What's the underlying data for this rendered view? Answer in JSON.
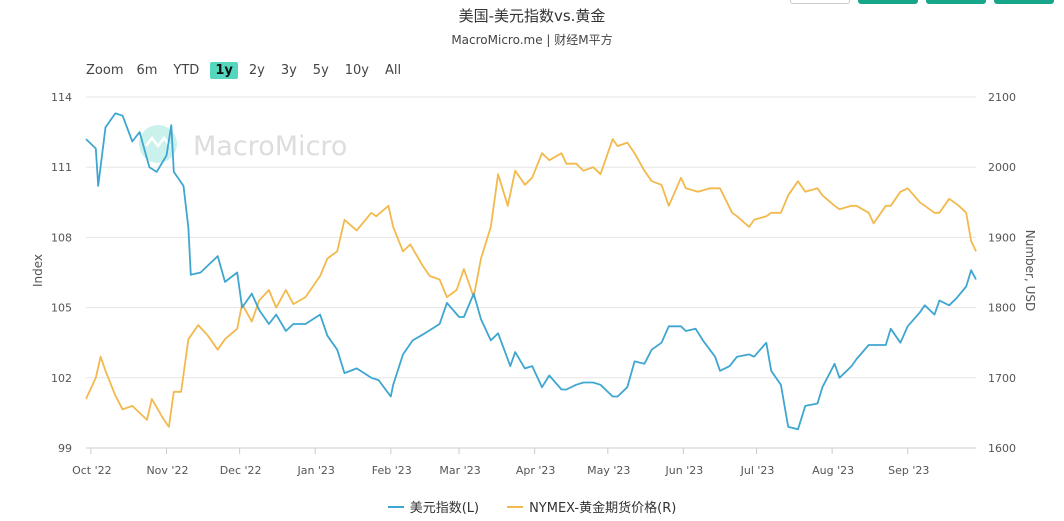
{
  "header": {
    "title": "美国-美元指数vs.黄金",
    "subtitle": "MacroMicro.me | 财经M平方"
  },
  "range_selector": {
    "label": "Zoom",
    "options": [
      "6m",
      "YTD",
      "1y",
      "2y",
      "3y",
      "5y",
      "10y",
      "All"
    ],
    "selected": "1y"
  },
  "watermark": {
    "text": "MacroMicro",
    "icon": "macromicro-logo-icon"
  },
  "colors": {
    "dxy": "#3ea6d0",
    "gold": "#f2b94d",
    "grid": "#e6e6e6",
    "axis_text": "#555555",
    "active_range": "#55d7bf"
  },
  "chart_data": {
    "type": "line",
    "title": "美国-美元指数vs.黄金",
    "subtitle": "MacroMicro.me | 财经M平方",
    "x_ticks": [
      "Oct '22",
      "Nov '22",
      "Dec '22",
      "Jan '23",
      "Feb '23",
      "Mar '23",
      "Apr '23",
      "May '23",
      "Jun '23",
      "Jul '23",
      "Aug '23",
      "Sep '23"
    ],
    "x_range": [
      "2022-09-29",
      "2023-09-29"
    ],
    "left_axis": {
      "label": "Index",
      "range": [
        99,
        114
      ],
      "ticks": [
        99,
        102,
        105,
        108,
        111,
        114
      ]
    },
    "right_axis": {
      "label": "Number, USD",
      "range": [
        1600,
        2100
      ],
      "ticks": [
        1600,
        1700,
        1800,
        1900,
        2000,
        2100
      ]
    },
    "grid": true,
    "legend_position": "bottom-center",
    "series": [
      {
        "name": "美元指数(L)",
        "axis": "left",
        "color": "#3ea6d0",
        "points": [
          [
            "2022-09-29",
            112.2
          ],
          [
            "2022-10-03",
            111.8
          ],
          [
            "2022-10-04",
            110.2
          ],
          [
            "2022-10-07",
            112.7
          ],
          [
            "2022-10-11",
            113.3
          ],
          [
            "2022-10-14",
            113.2
          ],
          [
            "2022-10-18",
            112.1
          ],
          [
            "2022-10-21",
            112.5
          ],
          [
            "2022-10-25",
            111.0
          ],
          [
            "2022-10-28",
            110.8
          ],
          [
            "2022-11-01",
            111.5
          ],
          [
            "2022-11-03",
            112.8
          ],
          [
            "2022-11-04",
            110.8
          ],
          [
            "2022-11-08",
            110.2
          ],
          [
            "2022-11-10",
            108.4
          ],
          [
            "2022-11-11",
            106.4
          ],
          [
            "2022-11-15",
            106.5
          ],
          [
            "2022-11-18",
            106.8
          ],
          [
            "2022-11-22",
            107.2
          ],
          [
            "2022-11-25",
            106.1
          ],
          [
            "2022-11-30",
            106.5
          ],
          [
            "2022-12-02",
            105.0
          ],
          [
            "2022-12-06",
            105.6
          ],
          [
            "2022-12-09",
            104.9
          ],
          [
            "2022-12-13",
            104.3
          ],
          [
            "2022-12-16",
            104.7
          ],
          [
            "2022-12-20",
            104.0
          ],
          [
            "2022-12-23",
            104.3
          ],
          [
            "2022-12-28",
            104.3
          ],
          [
            "2023-01-03",
            104.7
          ],
          [
            "2023-01-06",
            103.8
          ],
          [
            "2023-01-10",
            103.2
          ],
          [
            "2023-01-13",
            102.2
          ],
          [
            "2023-01-18",
            102.4
          ],
          [
            "2023-01-24",
            102.0
          ],
          [
            "2023-01-27",
            101.9
          ],
          [
            "2023-02-01",
            101.2
          ],
          [
            "2023-02-02",
            101.7
          ],
          [
            "2023-02-06",
            103.0
          ],
          [
            "2023-02-10",
            103.6
          ],
          [
            "2023-02-15",
            103.9
          ],
          [
            "2023-02-21",
            104.3
          ],
          [
            "2023-02-24",
            105.2
          ],
          [
            "2023-03-01",
            104.6
          ],
          [
            "2023-03-03",
            104.6
          ],
          [
            "2023-03-07",
            105.6
          ],
          [
            "2023-03-10",
            104.5
          ],
          [
            "2023-03-14",
            103.6
          ],
          [
            "2023-03-17",
            103.9
          ],
          [
            "2023-03-22",
            102.5
          ],
          [
            "2023-03-24",
            103.1
          ],
          [
            "2023-03-28",
            102.4
          ],
          [
            "2023-03-31",
            102.5
          ],
          [
            "2023-04-04",
            101.6
          ],
          [
            "2023-04-07",
            102.1
          ],
          [
            "2023-04-12",
            101.5
          ],
          [
            "2023-04-14",
            101.5
          ],
          [
            "2023-04-18",
            101.7
          ],
          [
            "2023-04-21",
            101.8
          ],
          [
            "2023-04-25",
            101.8
          ],
          [
            "2023-04-28",
            101.7
          ],
          [
            "2023-05-03",
            101.2
          ],
          [
            "2023-05-05",
            101.2
          ],
          [
            "2023-05-09",
            101.6
          ],
          [
            "2023-05-12",
            102.7
          ],
          [
            "2023-05-16",
            102.6
          ],
          [
            "2023-05-19",
            103.2
          ],
          [
            "2023-05-23",
            103.5
          ],
          [
            "2023-05-26",
            104.2
          ],
          [
            "2023-05-31",
            104.2
          ],
          [
            "2023-06-02",
            104.0
          ],
          [
            "2023-06-06",
            104.1
          ],
          [
            "2023-06-09",
            103.6
          ],
          [
            "2023-06-14",
            102.9
          ],
          [
            "2023-06-16",
            102.3
          ],
          [
            "2023-06-20",
            102.5
          ],
          [
            "2023-06-23",
            102.9
          ],
          [
            "2023-06-28",
            103.0
          ],
          [
            "2023-06-30",
            102.9
          ],
          [
            "2023-07-05",
            103.5
          ],
          [
            "2023-07-07",
            102.3
          ],
          [
            "2023-07-11",
            101.7
          ],
          [
            "2023-07-14",
            99.9
          ],
          [
            "2023-07-18",
            99.8
          ],
          [
            "2023-07-21",
            100.8
          ],
          [
            "2023-07-26",
            100.9
          ],
          [
            "2023-07-28",
            101.6
          ],
          [
            "2023-08-02",
            102.6
          ],
          [
            "2023-08-04",
            102.0
          ],
          [
            "2023-08-09",
            102.5
          ],
          [
            "2023-08-11",
            102.8
          ],
          [
            "2023-08-16",
            103.4
          ],
          [
            "2023-08-18",
            103.4
          ],
          [
            "2023-08-23",
            103.4
          ],
          [
            "2023-08-25",
            104.1
          ],
          [
            "2023-08-29",
            103.5
          ],
          [
            "2023-09-01",
            104.2
          ],
          [
            "2023-09-06",
            104.8
          ],
          [
            "2023-09-08",
            105.1
          ],
          [
            "2023-09-12",
            104.7
          ],
          [
            "2023-09-14",
            105.3
          ],
          [
            "2023-09-18",
            105.1
          ],
          [
            "2023-09-21",
            105.4
          ],
          [
            "2023-09-25",
            105.9
          ],
          [
            "2023-09-27",
            106.6
          ],
          [
            "2023-09-29",
            106.2
          ]
        ]
      },
      {
        "name": "NYMEX-黄金期货价格(R)",
        "axis": "right",
        "color": "#f2b94d",
        "points": [
          [
            "2022-09-29",
            1670
          ],
          [
            "2022-10-03",
            1700
          ],
          [
            "2022-10-05",
            1730
          ],
          [
            "2022-10-07",
            1710
          ],
          [
            "2022-10-11",
            1675
          ],
          [
            "2022-10-14",
            1655
          ],
          [
            "2022-10-18",
            1660
          ],
          [
            "2022-10-21",
            1650
          ],
          [
            "2022-10-24",
            1640
          ],
          [
            "2022-10-26",
            1670
          ],
          [
            "2022-10-31",
            1640
          ],
          [
            "2022-11-02",
            1630
          ],
          [
            "2022-11-04",
            1680
          ],
          [
            "2022-11-07",
            1680
          ],
          [
            "2022-11-10",
            1755
          ],
          [
            "2022-11-14",
            1775
          ],
          [
            "2022-11-18",
            1760
          ],
          [
            "2022-11-22",
            1740
          ],
          [
            "2022-11-25",
            1755
          ],
          [
            "2022-11-30",
            1770
          ],
          [
            "2022-12-02",
            1805
          ],
          [
            "2022-12-06",
            1780
          ],
          [
            "2022-12-09",
            1810
          ],
          [
            "2022-12-13",
            1825
          ],
          [
            "2022-12-16",
            1800
          ],
          [
            "2022-12-20",
            1825
          ],
          [
            "2022-12-23",
            1805
          ],
          [
            "2022-12-28",
            1815
          ],
          [
            "2023-01-03",
            1845
          ],
          [
            "2023-01-06",
            1870
          ],
          [
            "2023-01-10",
            1880
          ],
          [
            "2023-01-13",
            1925
          ],
          [
            "2023-01-18",
            1910
          ],
          [
            "2023-01-24",
            1935
          ],
          [
            "2023-01-26",
            1930
          ],
          [
            "2023-01-31",
            1945
          ],
          [
            "2023-02-02",
            1915
          ],
          [
            "2023-02-06",
            1880
          ],
          [
            "2023-02-09",
            1890
          ],
          [
            "2023-02-14",
            1860
          ],
          [
            "2023-02-17",
            1845
          ],
          [
            "2023-02-21",
            1840
          ],
          [
            "2023-02-24",
            1815
          ],
          [
            "2023-02-28",
            1825
          ],
          [
            "2023-03-03",
            1855
          ],
          [
            "2023-03-07",
            1815
          ],
          [
            "2023-03-10",
            1870
          ],
          [
            "2023-03-14",
            1915
          ],
          [
            "2023-03-17",
            1990
          ],
          [
            "2023-03-21",
            1945
          ],
          [
            "2023-03-24",
            1995
          ],
          [
            "2023-03-28",
            1975
          ],
          [
            "2023-03-31",
            1985
          ],
          [
            "2023-04-04",
            2020
          ],
          [
            "2023-04-07",
            2010
          ],
          [
            "2023-04-12",
            2020
          ],
          [
            "2023-04-14",
            2005
          ],
          [
            "2023-04-18",
            2005
          ],
          [
            "2023-04-21",
            1995
          ],
          [
            "2023-04-25",
            2000
          ],
          [
            "2023-04-28",
            1990
          ],
          [
            "2023-05-03",
            2040
          ],
          [
            "2023-05-05",
            2030
          ],
          [
            "2023-05-09",
            2035
          ],
          [
            "2023-05-12",
            2020
          ],
          [
            "2023-05-16",
            1995
          ],
          [
            "2023-05-19",
            1980
          ],
          [
            "2023-05-23",
            1975
          ],
          [
            "2023-05-26",
            1945
          ],
          [
            "2023-05-31",
            1985
          ],
          [
            "2023-06-02",
            1970
          ],
          [
            "2023-06-07",
            1965
          ],
          [
            "2023-06-12",
            1970
          ],
          [
            "2023-06-16",
            1970
          ],
          [
            "2023-06-21",
            1935
          ],
          [
            "2023-06-23",
            1930
          ],
          [
            "2023-06-28",
            1915
          ],
          [
            "2023-06-30",
            1925
          ],
          [
            "2023-07-05",
            1930
          ],
          [
            "2023-07-07",
            1935
          ],
          [
            "2023-07-11",
            1935
          ],
          [
            "2023-07-14",
            1960
          ],
          [
            "2023-07-18",
            1980
          ],
          [
            "2023-07-21",
            1965
          ],
          [
            "2023-07-26",
            1970
          ],
          [
            "2023-07-28",
            1960
          ],
          [
            "2023-08-02",
            1945
          ],
          [
            "2023-08-04",
            1940
          ],
          [
            "2023-08-09",
            1945
          ],
          [
            "2023-08-11",
            1945
          ],
          [
            "2023-08-16",
            1935
          ],
          [
            "2023-08-18",
            1920
          ],
          [
            "2023-08-23",
            1945
          ],
          [
            "2023-08-25",
            1945
          ],
          [
            "2023-08-29",
            1965
          ],
          [
            "2023-09-01",
            1970
          ],
          [
            "2023-09-06",
            1950
          ],
          [
            "2023-09-08",
            1945
          ],
          [
            "2023-09-12",
            1935
          ],
          [
            "2023-09-14",
            1935
          ],
          [
            "2023-09-18",
            1955
          ],
          [
            "2023-09-20",
            1950
          ],
          [
            "2023-09-22",
            1945
          ],
          [
            "2023-09-25",
            1935
          ],
          [
            "2023-09-27",
            1895
          ],
          [
            "2023-09-29",
            1880
          ]
        ]
      }
    ]
  }
}
